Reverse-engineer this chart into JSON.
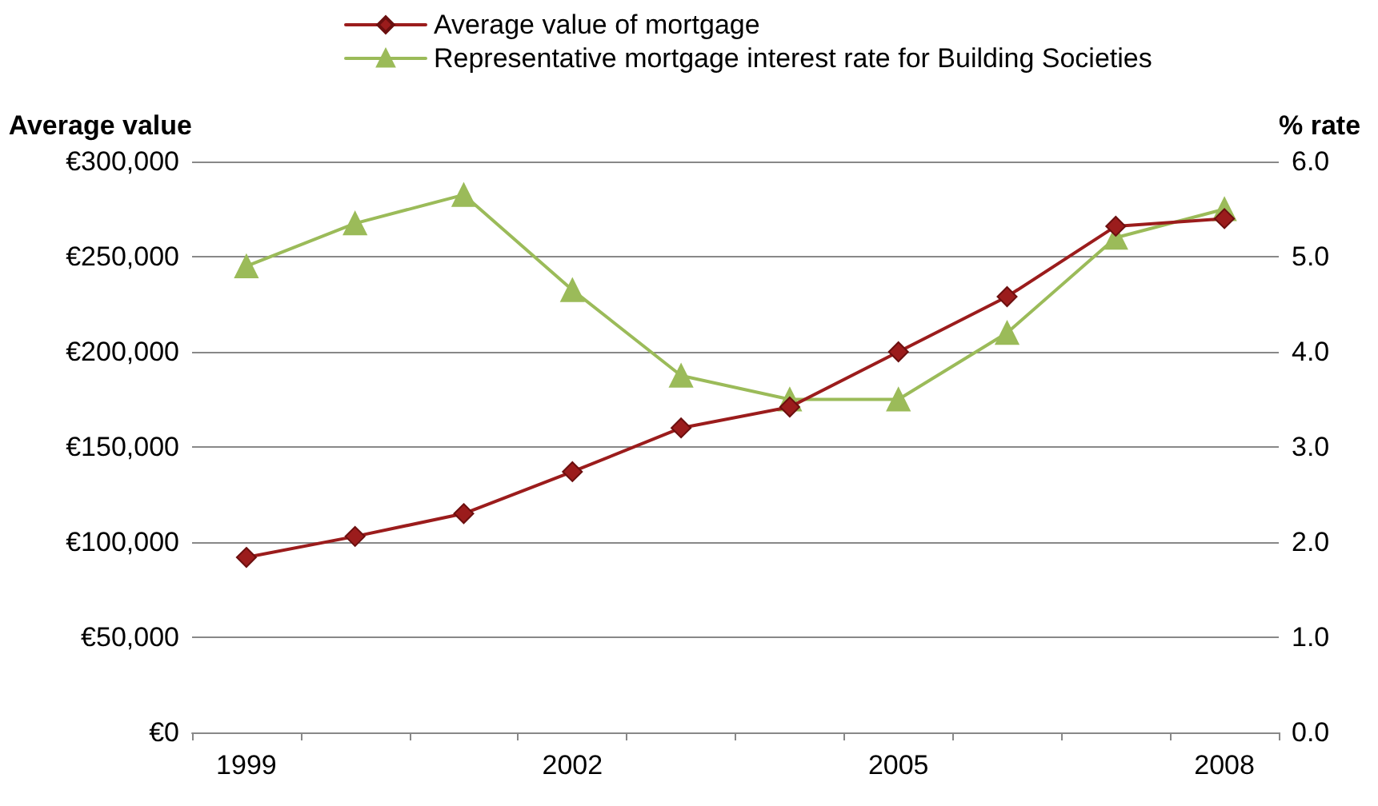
{
  "chart_data": {
    "type": "line",
    "categories": [
      "1999",
      null,
      null,
      "2002",
      null,
      null,
      "2005",
      null,
      null,
      "2008"
    ],
    "series": [
      {
        "name": "Average value of mortgage",
        "color": "#9b1c1c",
        "marker": "diamond",
        "values": [
          92000,
          103000,
          115000,
          137000,
          160000,
          171000,
          200000,
          229000,
          266000,
          270000
        ]
      },
      {
        "name": "Representative mortgage interest rate for Building Societies",
        "color": "#9bbb59",
        "marker": "triangle",
        "axis": "y2",
        "values": [
          4.9,
          5.35,
          5.65,
          4.65,
          3.75,
          3.5,
          3.5,
          4.2,
          5.2,
          5.5
        ]
      }
    ],
    "ylabel": "Average value",
    "y2label": "% rate",
    "ylim": [
      0,
      300000
    ],
    "yticks": [
      {
        "value": 0,
        "label": "€0"
      },
      {
        "value": 50000,
        "label": "€50,000"
      },
      {
        "value": 100000,
        "label": "€100,000"
      },
      {
        "value": 150000,
        "label": "€150,000"
      },
      {
        "value": 200000,
        "label": "€200,000"
      },
      {
        "value": 250000,
        "label": "€250,000"
      },
      {
        "value": 300000,
        "label": "€300,000"
      }
    ],
    "y2lim": [
      0,
      6
    ],
    "y2ticks": [
      {
        "value": 0,
        "label": "0.0"
      },
      {
        "value": 1,
        "label": "1.0"
      },
      {
        "value": 2,
        "label": "2.0"
      },
      {
        "value": 3,
        "label": "3.0"
      },
      {
        "value": 4,
        "label": "4.0"
      },
      {
        "value": 5,
        "label": "5.0"
      },
      {
        "value": 6,
        "label": "6.0"
      }
    ],
    "grid": "y",
    "legend": "top",
    "line_style": "solid"
  }
}
